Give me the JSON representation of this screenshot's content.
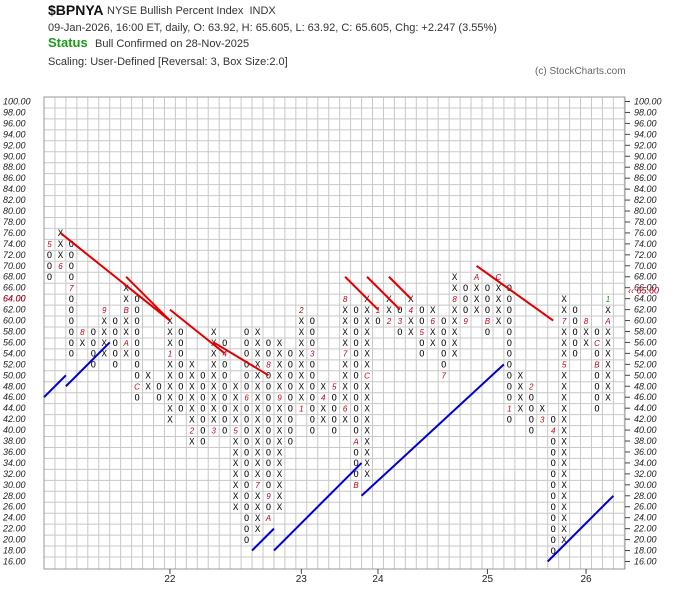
{
  "header": {
    "symbol": "$BPNYA",
    "name": "NYSE Bullish Percent Index",
    "exchange": "INDX",
    "info_line": "09-Jan-2026, 16:00 ET, daily, O: 63.92, H: 65.605, L: 63.92, C: 65.605, Chg: +2.247 (3.55%)",
    "status_label": "Status",
    "status_text": "Bull Confirmed on 28-Nov-2025",
    "scaling": "Scaling: User-Defined [Reversal: 3, Box Size:2.0]",
    "copyright": "(c) StockCharts.com"
  },
  "chart_data": {
    "type": "point-and-figure",
    "box_size": 2.0,
    "reversal": 3,
    "ylim": [
      16,
      100
    ],
    "y_ticks": [
      "100.00",
      "98.00",
      "96.00",
      "94.00",
      "92.00",
      "90.00",
      "88.00",
      "86.00",
      "84.00",
      "82.00",
      "80.00",
      "78.00",
      "76.00",
      "74.00",
      "72.00",
      "70.00",
      "68.00",
      "66.00",
      "64.00",
      "62.00",
      "60.00",
      "58.00",
      "56.00",
      "54.00",
      "52.00",
      "50.00",
      "48.00",
      "46.00",
      "44.00",
      "42.00",
      "40.00",
      "38.00",
      "36.00",
      "34.00",
      "32.00",
      "30.00",
      "28.00",
      "26.00",
      "24.00",
      "22.00",
      "20.00",
      "18.00",
      "16.00"
    ],
    "current_price_label_left": "64.00",
    "current_price_label_right": "65.60",
    "x_labels": [
      {
        "label": "22",
        "column": 11
      },
      {
        "label": "23",
        "column": 23
      },
      {
        "label": "24",
        "column": 30
      },
      {
        "label": "25",
        "column": 40
      },
      {
        "label": "26",
        "column": 49
      }
    ],
    "columns": [
      {
        "t": "O",
        "lo": 68,
        "hi": 74,
        "m": {
          "74": "5"
        }
      },
      {
        "t": "X",
        "lo": 70,
        "hi": 76,
        "m": {
          "70": "6"
        }
      },
      {
        "t": "O",
        "lo": 54,
        "hi": 74,
        "m": {
          "66": "7"
        }
      },
      {
        "t": "X",
        "lo": 56,
        "hi": 58,
        "m": {
          "58": "8"
        }
      },
      {
        "t": "O",
        "lo": 52,
        "hi": 58
      },
      {
        "t": "X",
        "lo": 54,
        "hi": 62,
        "m": {
          "62": "9"
        }
      },
      {
        "t": "O",
        "lo": 52,
        "hi": 60
      },
      {
        "t": "X",
        "lo": 54,
        "hi": 66,
        "m": {
          "62": "B",
          "56": "A"
        }
      },
      {
        "t": "O",
        "lo": 46,
        "hi": 64,
        "m": {
          "48": "C"
        }
      },
      {
        "t": "X",
        "lo": 48,
        "hi": 50
      },
      {
        "t": "O",
        "lo": 46,
        "hi": 48
      },
      {
        "t": "X",
        "lo": 42,
        "hi": 60,
        "m": {
          "54": "1"
        }
      },
      {
        "t": "O",
        "lo": 44,
        "hi": 58
      },
      {
        "t": "X",
        "lo": 38,
        "hi": 52,
        "m": {
          "40": "2"
        }
      },
      {
        "t": "O",
        "lo": 38,
        "hi": 50
      },
      {
        "t": "X",
        "lo": 40,
        "hi": 58,
        "m": {
          "40": "3"
        }
      },
      {
        "t": "O",
        "lo": 40,
        "hi": 56,
        "m": {
          "54": "4"
        }
      },
      {
        "t": "X",
        "lo": 26,
        "hi": 48,
        "m": {
          "40": "5"
        }
      },
      {
        "t": "O",
        "lo": 20,
        "hi": 58,
        "m": {
          "46": "6"
        }
      },
      {
        "t": "X",
        "lo": 22,
        "hi": 58,
        "m": {
          "30": "7"
        }
      },
      {
        "t": "O",
        "lo": 24,
        "hi": 56,
        "m": {
          "52": "8",
          "28": "9",
          "24": "A"
        }
      },
      {
        "t": "X",
        "lo": 26,
        "hi": 56,
        "m": {
          "46": "9"
        }
      },
      {
        "t": "O",
        "lo": 38,
        "hi": 54
      },
      {
        "t": "X",
        "lo": 44,
        "hi": 62,
        "m": {
          "62": "2",
          "44": "1"
        }
      },
      {
        "t": "O",
        "lo": 40,
        "hi": 60,
        "m": {
          "54": "3"
        }
      },
      {
        "t": "X",
        "lo": 42,
        "hi": 48,
        "m": {
          "46": "4"
        }
      },
      {
        "t": "O",
        "lo": 40,
        "hi": 48,
        "m": {
          "48": "5"
        }
      },
      {
        "t": "X",
        "lo": 42,
        "hi": 64,
        "m": {
          "64": "8",
          "54": "7",
          "44": "6"
        }
      },
      {
        "t": "O",
        "lo": 30,
        "hi": 62,
        "m": {
          "38": "A",
          "30": "B"
        }
      },
      {
        "t": "X",
        "lo": 32,
        "hi": 64,
        "m": {
          "50": "C"
        }
      },
      {
        "t": "O",
        "lo": 60,
        "hi": 62,
        "m": {
          "62": "1"
        }
      },
      {
        "t": "X",
        "lo": 60,
        "hi": 64,
        "m": {
          "60": "2"
        }
      },
      {
        "t": "O",
        "lo": 58,
        "hi": 62,
        "m": {
          "60": "3"
        }
      },
      {
        "t": "X",
        "lo": 58,
        "hi": 64,
        "m": {
          "62": "4"
        }
      },
      {
        "t": "O",
        "lo": 54,
        "hi": 62,
        "m": {
          "58": "5"
        }
      },
      {
        "t": "X",
        "lo": 56,
        "hi": 62,
        "m": {
          "60": "6"
        }
      },
      {
        "t": "O",
        "lo": 50,
        "hi": 60,
        "m": {
          "50": "7"
        }
      },
      {
        "t": "X",
        "lo": 54,
        "hi": 68,
        "m": {
          "64": "8"
        }
      },
      {
        "t": "O",
        "lo": 60,
        "hi": 66,
        "m": {
          "60": "9"
        }
      },
      {
        "t": "X",
        "lo": 62,
        "hi": 68,
        "m": {
          "68": "A"
        }
      },
      {
        "t": "O",
        "lo": 58,
        "hi": 66,
        "m": {
          "60": "B"
        }
      },
      {
        "t": "X",
        "lo": 60,
        "hi": 68,
        "m": {
          "68": "C"
        }
      },
      {
        "t": "O",
        "lo": 42,
        "hi": 66,
        "m": {
          "44": "1"
        }
      },
      {
        "t": "X",
        "lo": 44,
        "hi": 50
      },
      {
        "t": "O",
        "lo": 40,
        "hi": 48,
        "m": {
          "48": "2"
        }
      },
      {
        "t": "X",
        "lo": 42,
        "hi": 44,
        "m": {
          "42": "3"
        }
      },
      {
        "t": "O",
        "lo": 18,
        "hi": 42,
        "m": {
          "40": "4"
        }
      },
      {
        "t": "X",
        "lo": 20,
        "hi": 64,
        "m": {
          "60": "7",
          "52": "5"
        }
      },
      {
        "t": "O",
        "lo": 54,
        "hi": 62
      },
      {
        "t": "X",
        "lo": 56,
        "hi": 60,
        "m": {
          "60": "8"
        }
      },
      {
        "t": "O",
        "lo": 44,
        "hi": 58,
        "m": {
          "56": "C",
          "52": "B"
        }
      },
      {
        "t": "X",
        "lo": 46,
        "hi": 64,
        "m": {
          "64": "1",
          "60": "A"
        }
      }
    ],
    "trendlines": [
      {
        "kind": "resistance",
        "color": "#e00000",
        "from": [
          1,
          76
        ],
        "to": [
          11,
          60
        ]
      },
      {
        "kind": "resistance",
        "color": "#e00000",
        "from": [
          7,
          68
        ],
        "to": [
          11,
          60
        ]
      },
      {
        "kind": "resistance",
        "color": "#e00000",
        "from": [
          11,
          62
        ],
        "to": [
          16,
          54
        ]
      },
      {
        "kind": "resistance",
        "color": "#e00000",
        "from": [
          15,
          56
        ],
        "to": [
          20,
          50
        ]
      },
      {
        "kind": "resistance",
        "color": "#e00000",
        "from": [
          27,
          68
        ],
        "to": [
          30,
          62
        ]
      },
      {
        "kind": "resistance",
        "color": "#e00000",
        "from": [
          29,
          68
        ],
        "to": [
          32,
          62
        ]
      },
      {
        "kind": "resistance",
        "color": "#e00000",
        "from": [
          31,
          68
        ],
        "to": [
          33,
          64
        ]
      },
      {
        "kind": "resistance",
        "color": "#e00000",
        "from": [
          39,
          70
        ],
        "to": [
          46,
          60
        ]
      },
      {
        "kind": "support",
        "color": "#0000d0",
        "from": [
          -0.5,
          46
        ],
        "to": [
          1.5,
          50
        ]
      },
      {
        "kind": "support",
        "color": "#0000d0",
        "from": [
          1.5,
          48
        ],
        "to": [
          5.5,
          56
        ]
      },
      {
        "kind": "support",
        "color": "#0000d0",
        "from": [
          18.5,
          18
        ],
        "to": [
          20.5,
          22
        ]
      },
      {
        "kind": "support",
        "color": "#0000d0",
        "from": [
          20.5,
          18
        ],
        "to": [
          28.5,
          34
        ]
      },
      {
        "kind": "support",
        "color": "#0000d0",
        "from": [
          28.5,
          28
        ],
        "to": [
          41.5,
          52
        ]
      },
      {
        "kind": "support",
        "color": "#0000d0",
        "from": [
          45.5,
          16
        ],
        "to": [
          51.5,
          28
        ]
      }
    ]
  }
}
